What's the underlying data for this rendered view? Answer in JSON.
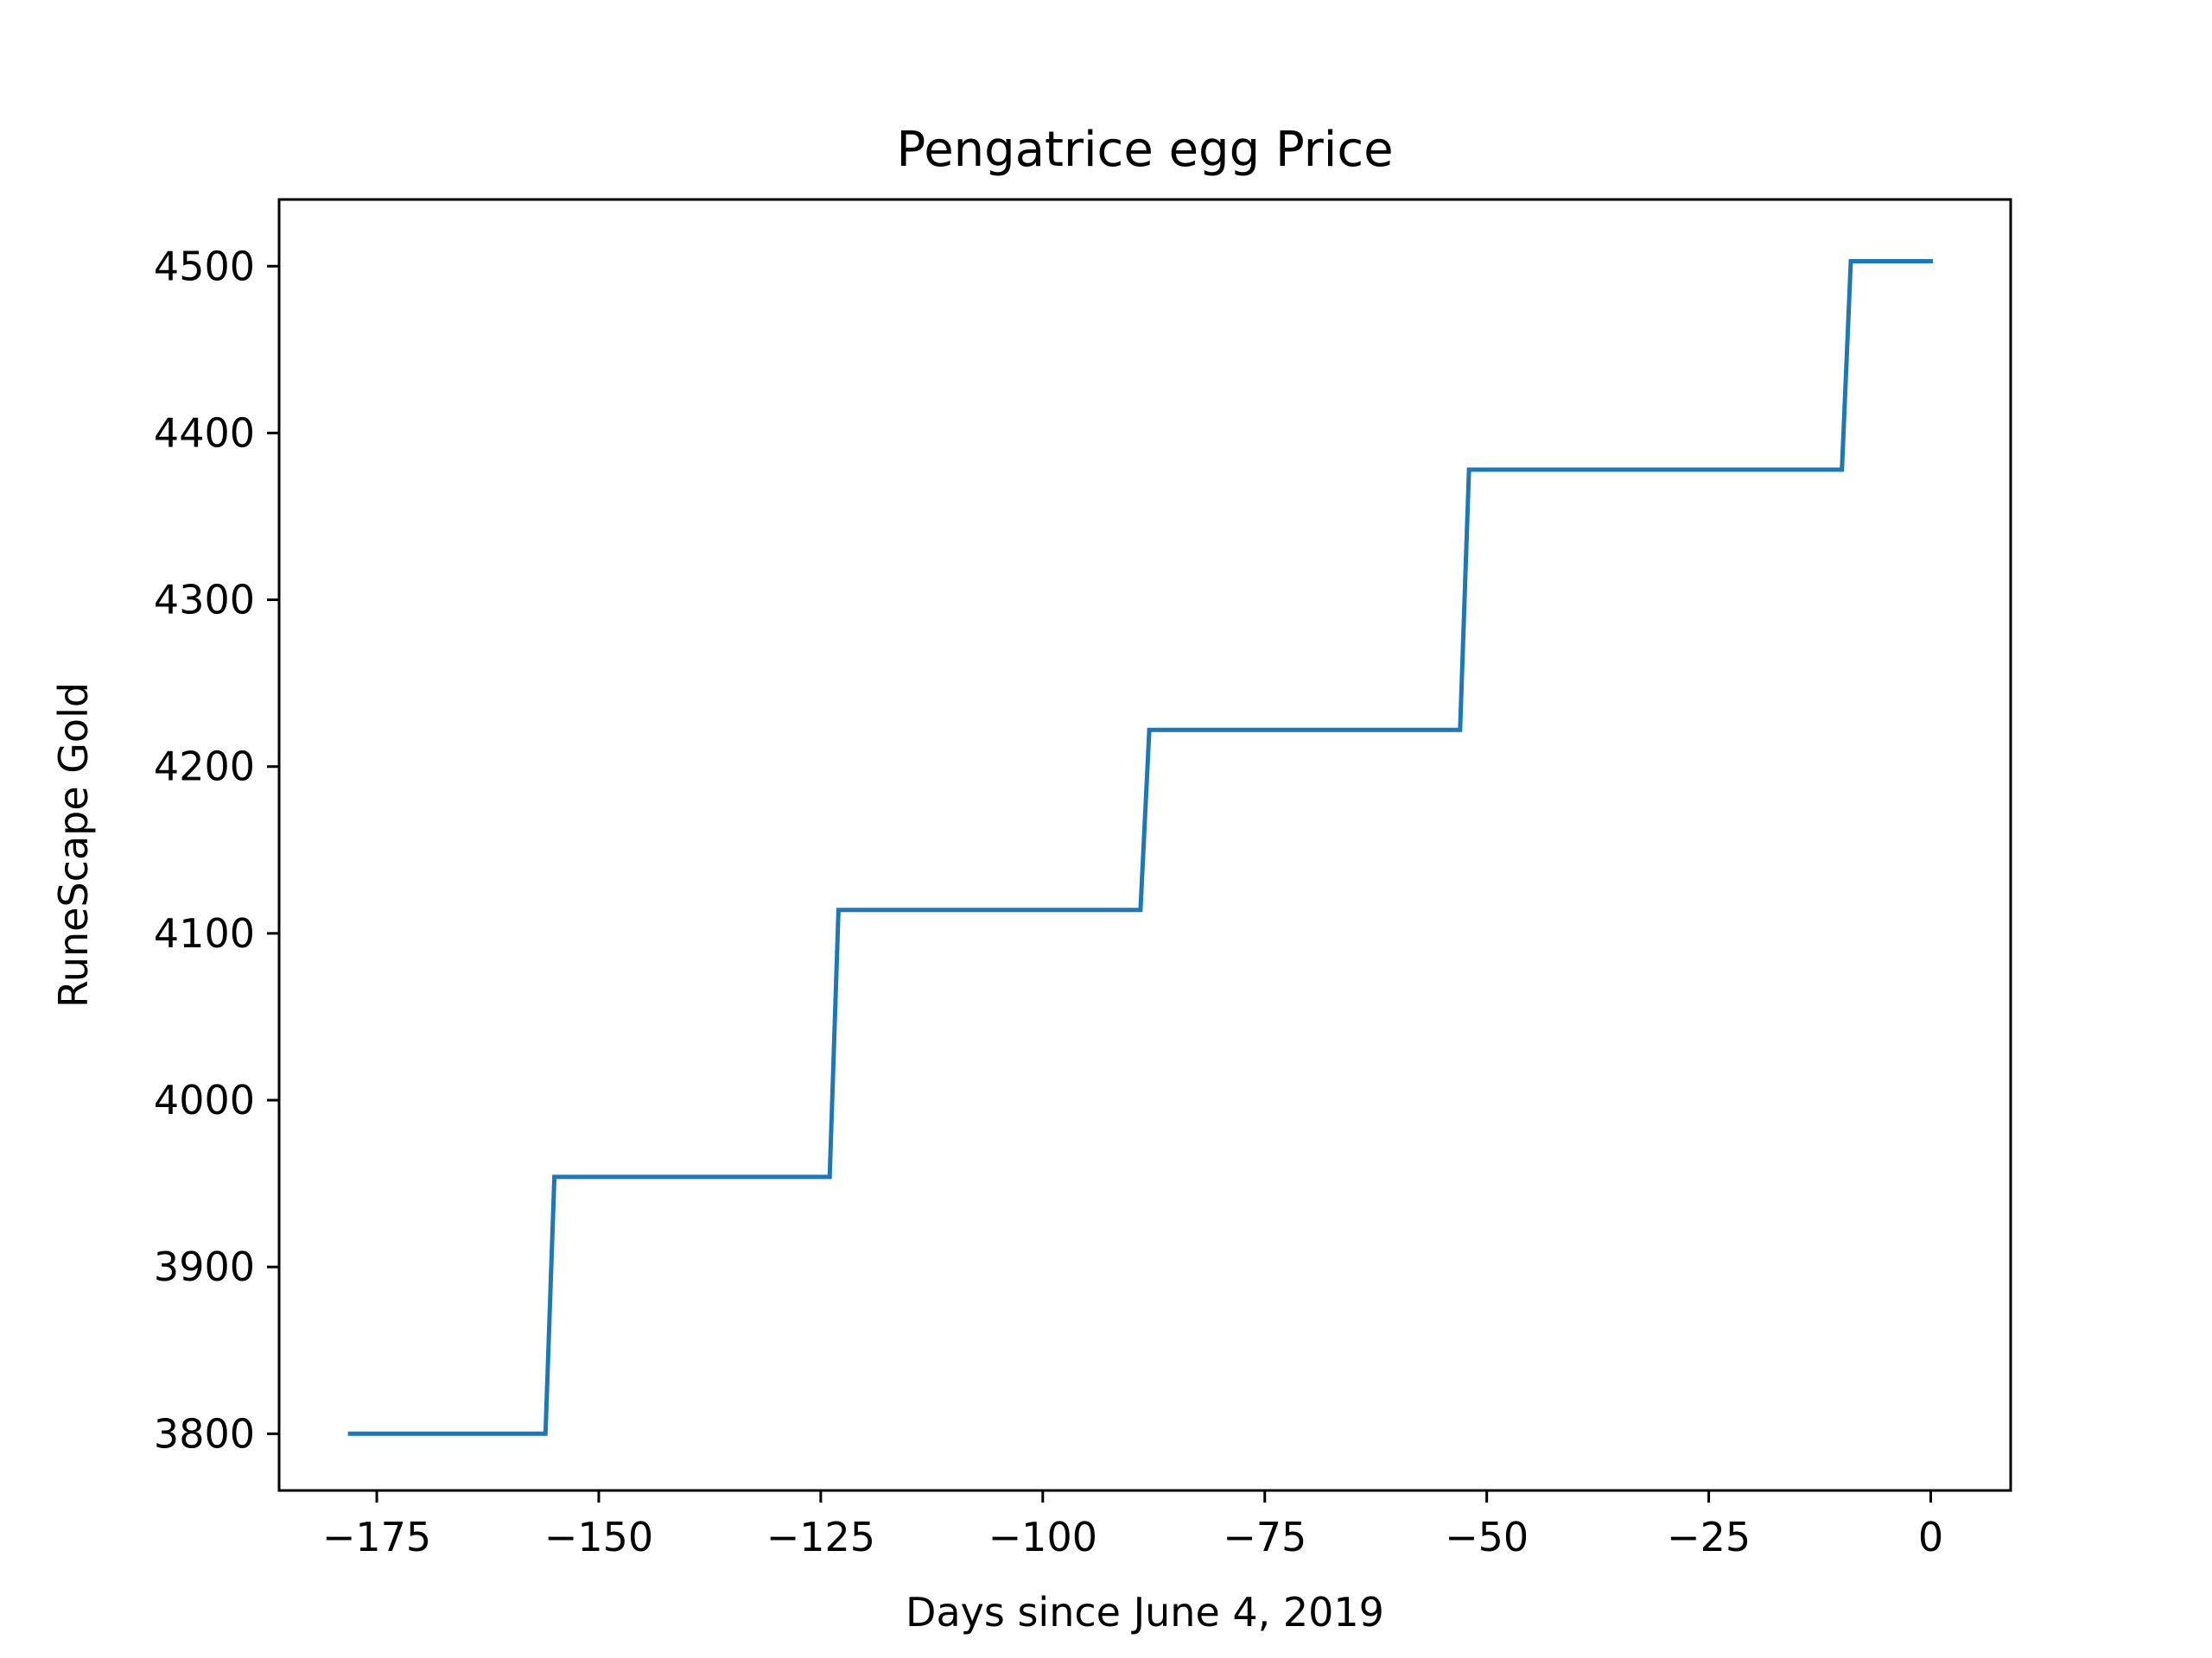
{
  "chart_data": {
    "type": "line",
    "title": "Pengatrice egg Price",
    "xlabel": "Days since June 4, 2019",
    "ylabel": "RuneScape Gold",
    "xlim": [
      -186,
      9
    ],
    "ylim": [
      3766,
      4540
    ],
    "xticks": [
      -175,
      -150,
      -125,
      -100,
      -75,
      -50,
      -25,
      0
    ],
    "xtick_labels": [
      "−175",
      "−150",
      "−125",
      "−100",
      "−75",
      "−50",
      "−25",
      "0"
    ],
    "yticks": [
      3800,
      3900,
      4000,
      4100,
      4200,
      4300,
      4400,
      4500
    ],
    "ytick_labels": [
      "3800",
      "3900",
      "4000",
      "4100",
      "4200",
      "4300",
      "4400",
      "4500"
    ],
    "grid": false,
    "series": [
      {
        "color": "#1f77b4",
        "x": [
          -178,
          -156,
          -155,
          -124,
          -123,
          -89,
          -88,
          -53,
          -52,
          -10,
          -9,
          0
        ],
        "y": [
          3800,
          3800,
          3954,
          3954,
          4114,
          4114,
          4222,
          4222,
          4378,
          4378,
          4503,
          4503
        ]
      }
    ]
  }
}
